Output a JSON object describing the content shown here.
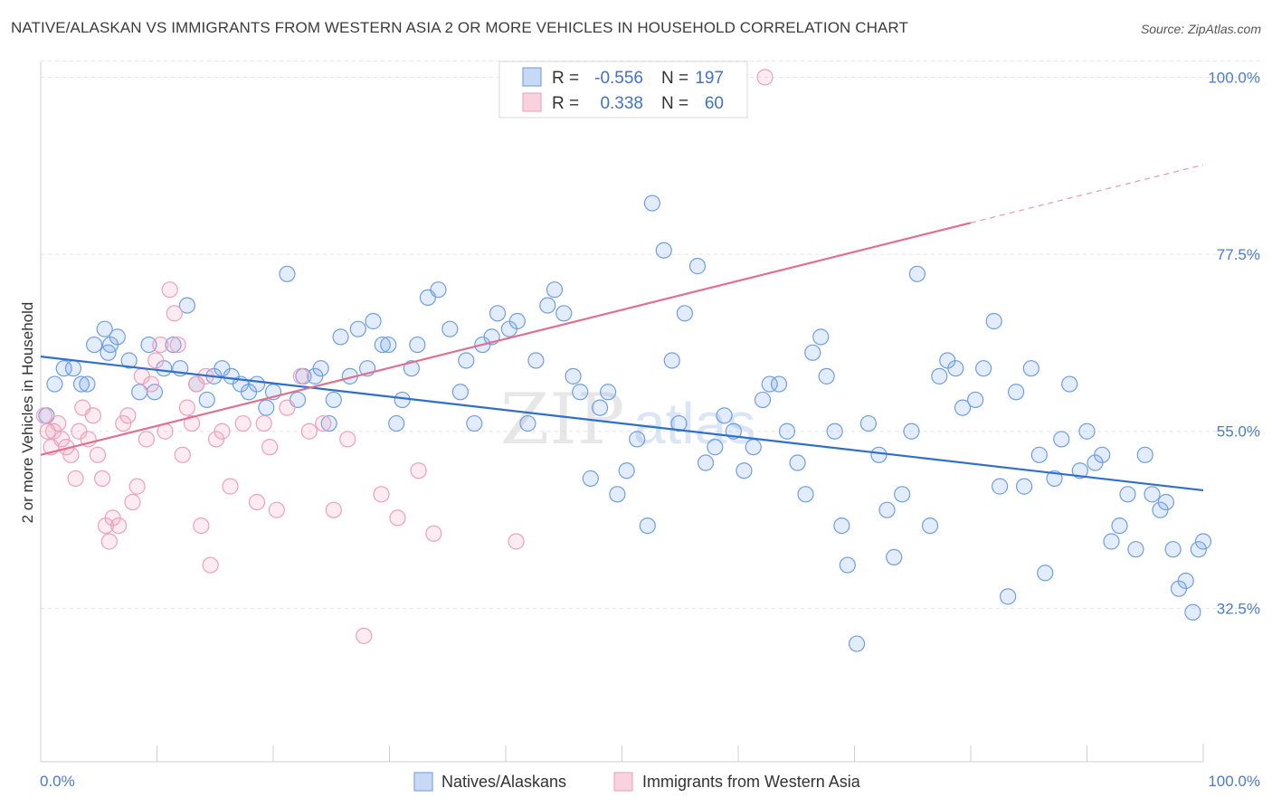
{
  "title": "NATIVE/ALASKAN VS IMMIGRANTS FROM WESTERN ASIA 2 OR MORE VEHICLES IN HOUSEHOLD CORRELATION CHART",
  "source": "Source: ZipAtlas.com",
  "watermark": {
    "zip": "ZIP",
    "atlas": "atlas"
  },
  "colors": {
    "blue": "#7aa7e6",
    "blue_line": "#2f6fcc",
    "pink": "#f0a6c0",
    "pink_line": "#e0708f",
    "tick_text": "#4a7bd0"
  },
  "stats_legend": {
    "rows": [
      {
        "r_label": "R =",
        "r_value": "-0.556",
        "n_label": "N =",
        "n_value": "197"
      },
      {
        "r_label": "R =",
        "r_value": "0.338",
        "n_label": "N =",
        "n_value": "60"
      }
    ]
  },
  "chart_data": {
    "type": "scatter",
    "xlabel": "",
    "ylabel": "2 or more Vehicles in Household",
    "xlim": [
      0,
      100
    ],
    "ylim": [
      13,
      102
    ],
    "x_tick_labels": [
      "0.0%",
      "100.0%"
    ],
    "y_ticks": [
      32.5,
      55.0,
      77.5,
      100.0
    ],
    "y_tick_labels": [
      "32.5%",
      "55.0%",
      "77.5%",
      "100.0%"
    ],
    "grid": "horizontal dashed",
    "legend_position": "bottom-center",
    "series": [
      {
        "name": "Natives/Alaskans",
        "color": "#7aa7e6",
        "trend": {
          "x": [
            0,
            100
          ],
          "y": [
            64.5,
            47.5
          ]
        },
        "points": [
          [
            0.5,
            57
          ],
          [
            1.2,
            61
          ],
          [
            2,
            63
          ],
          [
            2.8,
            63
          ],
          [
            3.5,
            61
          ],
          [
            4,
            61
          ],
          [
            4.6,
            66
          ],
          [
            5.5,
            68
          ],
          [
            5.8,
            65
          ],
          [
            6,
            66
          ],
          [
            6.6,
            67
          ],
          [
            7.6,
            64
          ],
          [
            8.5,
            60
          ],
          [
            9.3,
            66
          ],
          [
            9.8,
            60
          ],
          [
            10.6,
            63
          ],
          [
            11.4,
            66
          ],
          [
            12,
            63
          ],
          [
            12.6,
            71
          ],
          [
            13.4,
            61
          ],
          [
            14.3,
            59
          ],
          [
            14.9,
            62
          ],
          [
            15.6,
            63
          ],
          [
            16.4,
            62
          ],
          [
            17.2,
            61
          ],
          [
            17.9,
            60
          ],
          [
            18.6,
            61
          ],
          [
            19.4,
            58
          ],
          [
            20,
            60
          ],
          [
            21.2,
            75
          ],
          [
            22.1,
            59
          ],
          [
            22.6,
            62
          ],
          [
            23.6,
            62
          ],
          [
            24.1,
            63
          ],
          [
            24.8,
            56
          ],
          [
            25.2,
            59
          ],
          [
            25.8,
            67
          ],
          [
            26.6,
            62
          ],
          [
            27.3,
            68
          ],
          [
            28.1,
            63
          ],
          [
            28.6,
            69
          ],
          [
            29.4,
            66
          ],
          [
            29.9,
            66
          ],
          [
            30.6,
            56
          ],
          [
            31.1,
            59
          ],
          [
            31.9,
            63
          ],
          [
            32.4,
            66
          ],
          [
            33.3,
            72
          ],
          [
            34.2,
            73
          ],
          [
            35.2,
            68
          ],
          [
            36.1,
            60
          ],
          [
            36.6,
            64
          ],
          [
            37.3,
            56
          ],
          [
            38,
            66
          ],
          [
            38.8,
            67
          ],
          [
            39.3,
            70
          ],
          [
            40.3,
            68
          ],
          [
            41,
            69
          ],
          [
            41.9,
            56
          ],
          [
            42.6,
            64
          ],
          [
            43.6,
            71
          ],
          [
            44.2,
            73
          ],
          [
            45,
            70
          ],
          [
            45.8,
            62
          ],
          [
            46.4,
            60
          ],
          [
            47.3,
            49
          ],
          [
            48.1,
            58
          ],
          [
            48.8,
            60
          ],
          [
            49.6,
            47
          ],
          [
            50.4,
            50
          ],
          [
            51.3,
            54
          ],
          [
            52.2,
            43
          ],
          [
            52.6,
            84
          ],
          [
            53.6,
            78
          ],
          [
            54.3,
            64
          ],
          [
            54.9,
            56
          ],
          [
            55.4,
            70
          ],
          [
            56.5,
            76
          ],
          [
            57.2,
            51
          ],
          [
            58,
            53
          ],
          [
            58.8,
            57
          ],
          [
            59.6,
            55
          ],
          [
            60.5,
            50
          ],
          [
            61.3,
            53
          ],
          [
            62.1,
            59
          ],
          [
            62.7,
            61
          ],
          [
            63.5,
            61
          ],
          [
            64.2,
            55
          ],
          [
            65.1,
            51
          ],
          [
            65.8,
            47
          ],
          [
            66.4,
            65
          ],
          [
            67.1,
            67
          ],
          [
            67.6,
            62
          ],
          [
            68.3,
            55
          ],
          [
            68.9,
            43
          ],
          [
            69.4,
            38
          ],
          [
            70.2,
            28
          ],
          [
            71.2,
            56
          ],
          [
            72.1,
            52
          ],
          [
            72.8,
            45
          ],
          [
            73.4,
            39
          ],
          [
            74.1,
            47
          ],
          [
            74.9,
            55
          ],
          [
            75.4,
            75
          ],
          [
            76.5,
            43
          ],
          [
            77.3,
            62
          ],
          [
            78,
            64
          ],
          [
            78.7,
            63
          ],
          [
            79.3,
            58
          ],
          [
            80.4,
            59
          ],
          [
            81.1,
            63
          ],
          [
            82,
            69
          ],
          [
            82.5,
            48
          ],
          [
            83.2,
            34
          ],
          [
            83.9,
            60
          ],
          [
            84.6,
            48
          ],
          [
            85.2,
            63
          ],
          [
            85.9,
            52
          ],
          [
            86.4,
            37
          ],
          [
            87.2,
            49
          ],
          [
            87.8,
            54
          ],
          [
            88.5,
            61
          ],
          [
            89.4,
            50
          ],
          [
            90,
            55
          ],
          [
            90.7,
            51
          ],
          [
            91.3,
            52
          ],
          [
            92.1,
            41
          ],
          [
            92.8,
            43
          ],
          [
            93.5,
            47
          ],
          [
            94.2,
            40
          ],
          [
            95,
            52
          ],
          [
            95.6,
            47
          ],
          [
            96.3,
            45
          ],
          [
            96.8,
            46
          ],
          [
            97.4,
            40
          ],
          [
            97.9,
            35
          ],
          [
            98.5,
            36
          ],
          [
            99.1,
            32
          ],
          [
            99.6,
            40
          ],
          [
            100,
            41
          ]
        ]
      },
      {
        "name": "Immigrants from Western Asia",
        "color": "#f0a6c0",
        "trend": {
          "x": [
            0,
            80
          ],
          "y": [
            52,
            81.5
          ]
        },
        "points": [
          [
            0.3,
            57
          ],
          [
            0.6,
            55
          ],
          [
            0.9,
            53
          ],
          [
            1.1,
            55
          ],
          [
            1.5,
            56
          ],
          [
            1.8,
            54
          ],
          [
            2.2,
            53
          ],
          [
            2.6,
            52
          ],
          [
            3,
            49
          ],
          [
            3.3,
            55
          ],
          [
            3.6,
            58
          ],
          [
            4.1,
            54
          ],
          [
            4.5,
            57
          ],
          [
            4.9,
            52
          ],
          [
            5.3,
            49
          ],
          [
            5.6,
            43
          ],
          [
            5.9,
            41
          ],
          [
            6.2,
            44
          ],
          [
            6.7,
            43
          ],
          [
            7.1,
            56
          ],
          [
            7.5,
            57
          ],
          [
            7.9,
            46
          ],
          [
            8.3,
            48
          ],
          [
            8.7,
            62
          ],
          [
            9.1,
            54
          ],
          [
            9.5,
            61
          ],
          [
            9.9,
            64
          ],
          [
            10.3,
            66
          ],
          [
            10.7,
            55
          ],
          [
            11.1,
            73
          ],
          [
            11.5,
            70
          ],
          [
            11.8,
            66
          ],
          [
            12.2,
            52
          ],
          [
            12.6,
            58
          ],
          [
            13,
            56
          ],
          [
            13.4,
            61
          ],
          [
            13.8,
            43
          ],
          [
            14.2,
            62
          ],
          [
            14.6,
            38
          ],
          [
            15.1,
            54
          ],
          [
            15.6,
            55
          ],
          [
            16.3,
            48
          ],
          [
            17.4,
            56
          ],
          [
            18.6,
            46
          ],
          [
            19.2,
            56
          ],
          [
            19.7,
            53
          ],
          [
            20.3,
            45
          ],
          [
            21.2,
            58
          ],
          [
            22.4,
            62
          ],
          [
            23.1,
            55
          ],
          [
            24.3,
            56
          ],
          [
            25.2,
            45
          ],
          [
            26.4,
            54
          ],
          [
            27.8,
            29
          ],
          [
            29.3,
            47
          ],
          [
            30.7,
            44
          ],
          [
            32.5,
            50
          ],
          [
            33.8,
            42
          ],
          [
            40.9,
            41
          ],
          [
            62.3,
            100
          ]
        ]
      }
    ]
  }
}
